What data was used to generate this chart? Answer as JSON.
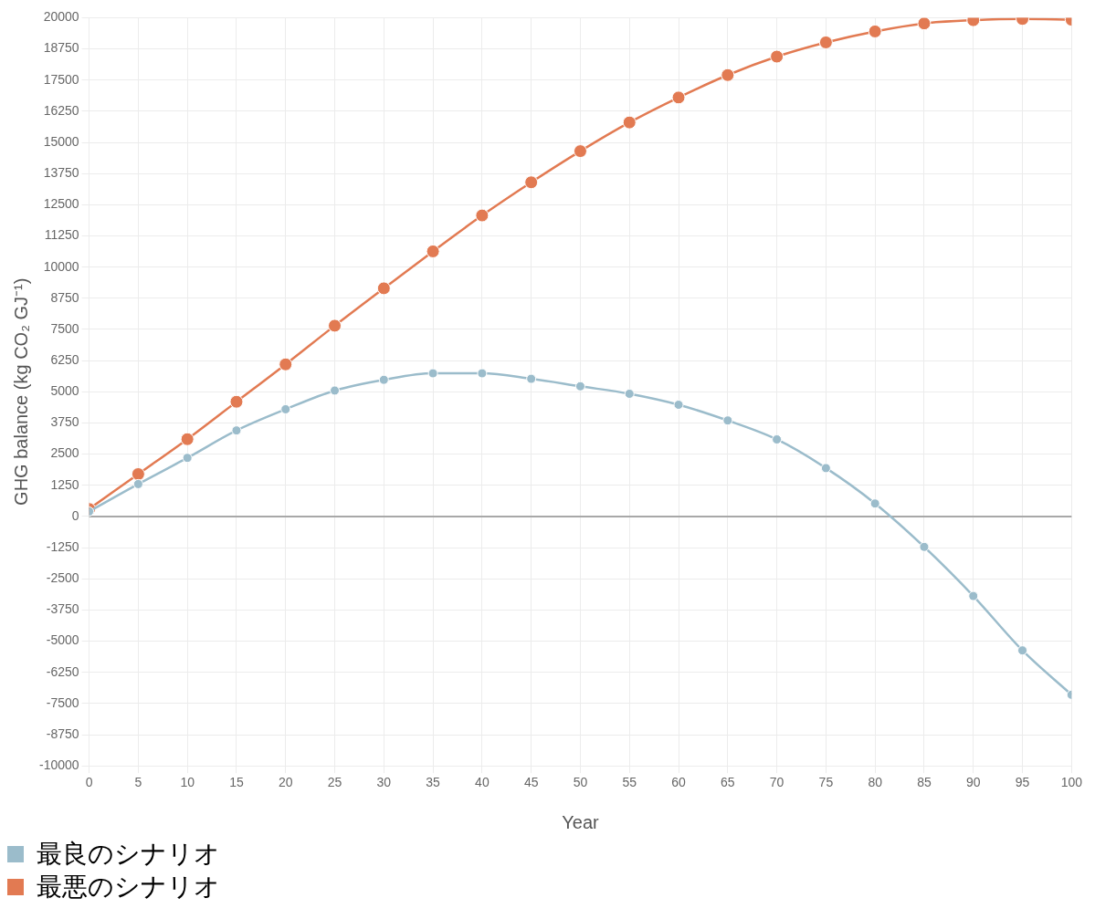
{
  "chart_data": {
    "type": "line",
    "xlabel": "Year",
    "ylabel": "GHG balance (kg CO₂ GJ⁻¹)",
    "x": [
      0,
      5,
      10,
      15,
      20,
      25,
      30,
      35,
      40,
      45,
      50,
      55,
      60,
      65,
      70,
      75,
      80,
      85,
      90,
      95,
      100
    ],
    "xlim": [
      0,
      100
    ],
    "xticks": [
      0,
      5,
      10,
      15,
      20,
      25,
      30,
      35,
      40,
      45,
      50,
      55,
      60,
      65,
      70,
      75,
      80,
      85,
      90,
      95,
      100
    ],
    "ylim": [
      -10000,
      20000
    ],
    "yticks": [
      -10000,
      -8750,
      -7500,
      -6250,
      -5000,
      -3750,
      -2500,
      -1250,
      0,
      1250,
      2500,
      3750,
      5000,
      6250,
      7500,
      8750,
      10000,
      11250,
      12500,
      13750,
      15000,
      16250,
      17500,
      18750,
      20000
    ],
    "series": [
      {
        "name": "最良のシナリオ",
        "color": "#9bbccb",
        "values": [
          200,
          1300,
          2350,
          3450,
          4300,
          5050,
          5480,
          5740,
          5740,
          5520,
          5220,
          4920,
          4480,
          3850,
          3090,
          1940,
          520,
          -1220,
          -3190,
          -5370,
          -7150
        ]
      },
      {
        "name": "最悪のシナリオ",
        "color": "#e27a52",
        "values": [
          300,
          1700,
          3100,
          4600,
          6100,
          7650,
          9150,
          10630,
          12070,
          13400,
          14650,
          15800,
          16800,
          17700,
          18440,
          19010,
          19450,
          19770,
          19900,
          19950,
          19920
        ]
      }
    ],
    "ref_lines": [
      {
        "axis": "y",
        "value": 0,
        "color": "#a8a8a8"
      }
    ],
    "grid": true,
    "legend": "bottom left",
    "marker": "circle",
    "line_style": "solid"
  }
}
